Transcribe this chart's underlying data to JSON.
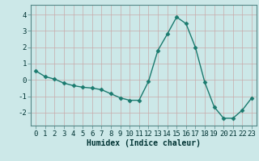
{
  "x": [
    0,
    1,
    2,
    3,
    4,
    5,
    6,
    7,
    8,
    9,
    10,
    11,
    12,
    13,
    14,
    15,
    16,
    17,
    18,
    19,
    20,
    21,
    22,
    23
  ],
  "y": [
    0.55,
    0.2,
    0.05,
    -0.2,
    -0.35,
    -0.45,
    -0.5,
    -0.6,
    -0.85,
    -1.1,
    -1.25,
    -1.25,
    -0.1,
    1.8,
    2.8,
    3.85,
    3.45,
    2.0,
    -0.15,
    -1.65,
    -2.35,
    -2.35,
    -1.85,
    -1.1
  ],
  "line_color": "#1a7a6e",
  "marker": "D",
  "marker_size": 2.5,
  "linewidth": 1.0,
  "bg_color": "#cce8e8",
  "grid_color": "#b8d4d4",
  "xlabel": "Humidex (Indice chaleur)",
  "xlabel_fontsize": 7,
  "tick_fontsize": 6.5,
  "xlim": [
    -0.5,
    23.5
  ],
  "ylim": [
    -2.8,
    4.6
  ],
  "yticks": [
    -2,
    -1,
    0,
    1,
    2,
    3,
    4
  ],
  "spine_color": "#558888"
}
